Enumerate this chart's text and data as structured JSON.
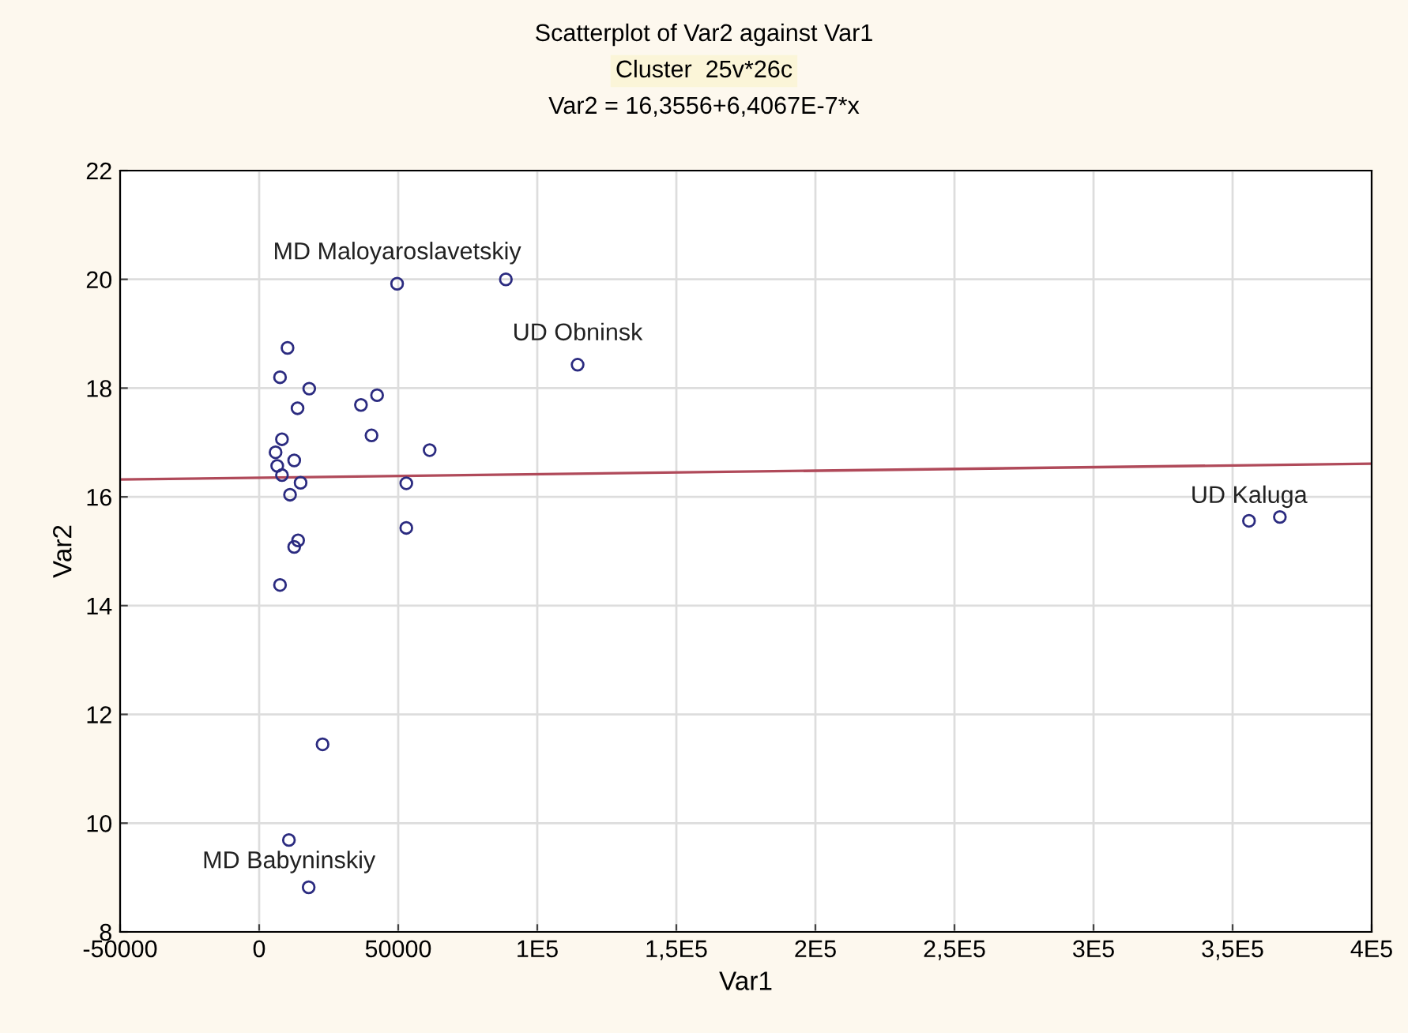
{
  "chart_data": {
    "type": "scatter",
    "title": "Scatterplot of Var2 against Var1",
    "subtitle": "Cluster  25v*26c",
    "xlabel": "Var1",
    "ylabel": "Var2",
    "xlim": [
      -50000,
      400000
    ],
    "xticks": [
      {
        "value": -50000,
        "label": "-50000"
      },
      0,
      50000,
      {
        "value": 100000,
        "label": "1E5"
      },
      {
        "value": 150000,
        "label": "1,5E5"
      },
      {
        "value": 200000,
        "label": "2E5"
      },
      {
        "value": 250000,
        "label": "2,5E5"
      },
      {
        "value": 300000,
        "label": "3E5"
      },
      {
        "value": 350000,
        "label": "3,5E5"
      },
      {
        "value": 400000,
        "label": "4E5"
      }
    ],
    "ylim": [
      8,
      22
    ],
    "yticks": [
      8,
      10,
      12,
      14,
      16,
      18,
      20,
      22
    ],
    "grid": true,
    "marker": "circle",
    "series": [
      {
        "color": "#2b2b80",
        "x": [
          49600,
          10200,
          7500,
          18000,
          13800,
          36600,
          42400,
          40400,
          61300,
          8200,
          5900,
          6500,
          12600,
          8200,
          14900,
          11100,
          52900,
          52900,
          14000,
          12600,
          7500,
          114500,
          22800,
          10700,
          17800,
          355900,
          367000,
          88700
        ],
        "values": [
          19.92,
          18.74,
          18.2,
          17.99,
          17.63,
          17.69,
          17.87,
          17.13,
          16.86,
          17.06,
          16.82,
          16.57,
          16.67,
          16.4,
          16.26,
          16.04,
          16.25,
          15.43,
          15.2,
          15.08,
          14.38,
          18.43,
          11.45,
          9.69,
          8.82,
          15.56,
          15.63,
          20.0
        ]
      },
      {
        "type": "line",
        "color": "#b04a5a",
        "x": [
          -50000,
          400000
        ],
        "values": [
          16.32,
          16.61
        ],
        "marker": "none"
      }
    ],
    "annotations": [
      "Var2 = 16,3556+6,4067E-7*x",
      {
        "text": "MD Maloyaroslavetskiy",
        "x": 49600,
        "y": 19.92
      },
      {
        "text": "UD Obninsk",
        "x": 114500,
        "y": 18.43
      },
      {
        "text": "UD Kaluga",
        "x": 355900,
        "y": 15.56
      },
      {
        "text": "MD Babyninskiy",
        "x": 10700,
        "y": 9.69
      }
    ]
  }
}
